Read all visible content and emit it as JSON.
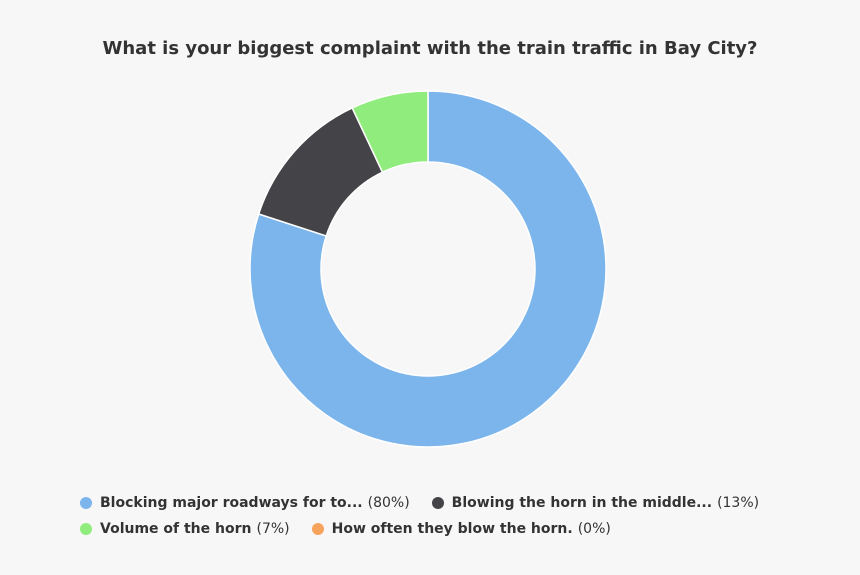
{
  "chart_data": {
    "type": "pie",
    "variant": "donut",
    "title": "What is your biggest complaint with the train traffic in Bay City?",
    "slices": [
      {
        "label": "Blocking major roadways for to...",
        "percent_label": "(80%)",
        "value": 80,
        "color": "#7cb5ec"
      },
      {
        "label": "Blowing the horn in the middle...",
        "percent_label": "(13%)",
        "value": 13,
        "color": "#434348"
      },
      {
        "label": "Volume of the horn",
        "percent_label": "(7%)",
        "value": 7,
        "color": "#90ed7d"
      },
      {
        "label": "How often they blow the horn.",
        "percent_label": "(0%)",
        "value": 0,
        "color": "#f7a35c"
      }
    ],
    "legend_position": "bottom",
    "grid": false
  }
}
